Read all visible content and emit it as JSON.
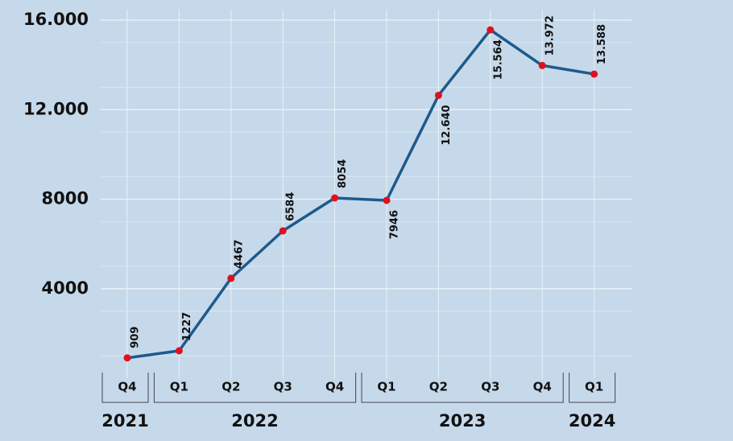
{
  "chart_data": {
    "type": "line",
    "categories": [
      "Q4",
      "Q1",
      "Q2",
      "Q3",
      "Q4",
      "Q1",
      "Q2",
      "Q3",
      "Q4",
      "Q1"
    ],
    "groups": [
      {
        "name": "2021",
        "size": 1
      },
      {
        "name": "2022",
        "size": 4
      },
      {
        "name": "2023",
        "size": 4
      },
      {
        "name": "2024",
        "size": 1
      }
    ],
    "series": [
      {
        "name": "Value",
        "color": "#1d5a8c",
        "marker_color": "#e0101e",
        "values": [
          909,
          1227,
          4467,
          6584,
          8054,
          7946,
          12640,
          15564,
          13972,
          13588
        ],
        "value_labels": [
          "909",
          "1227",
          "4467",
          "6584",
          "8054",
          "7946",
          "12.640",
          "15.564",
          "13.972",
          "13.588"
        ]
      }
    ],
    "ylim": [
      0,
      16000
    ],
    "yticks": [
      4000,
      8000,
      {
        "value": 12000,
        "label": "12.000"
      },
      {
        "value": 16000,
        "label": "16.000"
      }
    ],
    "grid": true
  }
}
